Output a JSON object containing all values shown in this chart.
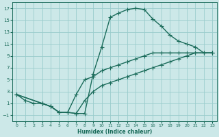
{
  "xlabel": "Humidex (Indice chaleur)",
  "bg_color": "#cce8e8",
  "grid_color": "#99cccc",
  "line_color": "#1a6b5a",
  "xlim": [
    -0.5,
    23.5
  ],
  "ylim": [
    -2,
    18
  ],
  "xticks": [
    0,
    1,
    2,
    3,
    4,
    5,
    6,
    7,
    8,
    9,
    10,
    11,
    12,
    13,
    14,
    15,
    16,
    17,
    18,
    19,
    20,
    21,
    22,
    23
  ],
  "yticks": [
    -1,
    1,
    3,
    5,
    7,
    9,
    11,
    13,
    15,
    17
  ],
  "curve1_x": [
    0,
    1,
    2,
    3,
    4,
    5,
    6,
    7,
    8,
    9,
    10,
    11,
    12,
    13,
    14,
    15,
    16,
    17,
    18,
    19,
    20,
    21,
    22,
    23
  ],
  "curve1_y": [
    2.5,
    1.5,
    1.0,
    1.0,
    0.5,
    -0.5,
    -0.5,
    -0.7,
    -0.7,
    6.0,
    10.5,
    15.5,
    16.2,
    16.8,
    17.0,
    16.8,
    15.2,
    14.0,
    12.5,
    11.5,
    11.0,
    10.5,
    9.5,
    9.5
  ],
  "curve2_x": [
    0,
    3,
    4,
    5,
    6,
    7,
    8,
    9,
    10,
    11,
    12,
    13,
    14,
    15,
    16,
    17,
    18,
    19,
    20,
    21,
    22,
    23
  ],
  "curve2_y": [
    2.5,
    1.0,
    0.5,
    -0.5,
    -0.5,
    2.5,
    5.0,
    5.5,
    6.5,
    7.0,
    7.5,
    8.0,
    8.5,
    9.0,
    9.5,
    9.5,
    9.5,
    9.5,
    9.5,
    9.5,
    9.5,
    9.5
  ],
  "curve3_x": [
    0,
    3,
    4,
    5,
    6,
    7,
    8,
    9,
    10,
    11,
    12,
    13,
    14,
    15,
    16,
    17,
    18,
    19,
    20,
    21,
    22,
    23
  ],
  "curve3_y": [
    2.5,
    1.0,
    0.5,
    -0.5,
    -0.5,
    -0.7,
    1.5,
    3.0,
    4.0,
    4.5,
    5.0,
    5.5,
    6.0,
    6.5,
    7.0,
    7.5,
    8.0,
    8.5,
    9.0,
    9.5,
    9.5,
    9.5
  ],
  "marker_size": 2.5,
  "linewidth": 1.0
}
